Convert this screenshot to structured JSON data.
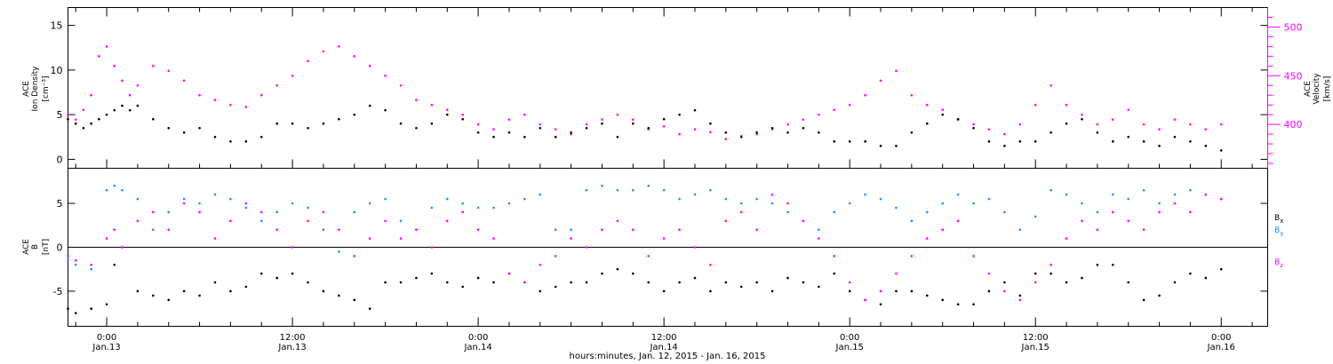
{
  "figure": {
    "xlabel": "hours:minutes, Jan. 12, 2015 - Jan. 16, 2015",
    "x_ticks": [
      {
        "time": "0:00",
        "date": "Jan.13"
      },
      {
        "time": "12:00",
        "date": "Jan.13"
      },
      {
        "time": "0:00",
        "date": "Jan.14"
      },
      {
        "time": "12:00",
        "date": "Jan.14"
      },
      {
        "time": "0:00",
        "date": "Jan.15"
      },
      {
        "time": "12:00",
        "date": "Jan.15"
      },
      {
        "time": "0:00",
        "date": "Jan.16"
      }
    ]
  },
  "colors": {
    "axis": "#000000",
    "black_series": "#000000",
    "magenta": "#ff00ff",
    "blue": "#1e90ff"
  },
  "chart_data": [
    {
      "type": "scatter",
      "panel": "top",
      "x_unit": "hours since 2015-01-12 00:00",
      "x_range": [
        "2015-01-12 21:30",
        "2015-01-16 03:00"
      ],
      "ylabel_left": [
        "ACE",
        "Ion Density",
        "[cm⁻³]"
      ],
      "ylabel_right": [
        "ACE",
        "Velocity",
        "[km/s]"
      ],
      "ylim_left": [
        -1,
        17
      ],
      "yticks_left": [
        0,
        5,
        10,
        15
      ],
      "ylim_right": [
        355,
        520
      ],
      "yticks_right": [
        400,
        450,
        500
      ],
      "series": [
        {
          "name": "Ion Density",
          "axis": "left",
          "color": "#000000",
          "x": [
            21.5,
            22,
            22.5,
            23,
            23.5,
            24,
            24.5,
            25,
            25.5,
            26,
            27,
            28,
            29,
            30,
            31,
            32,
            33,
            34,
            35,
            36,
            37,
            38,
            39,
            40,
            41,
            42,
            43,
            44,
            45,
            46,
            47,
            48,
            49,
            50,
            51,
            52,
            53,
            54,
            55,
            56,
            57,
            58,
            59,
            60,
            61,
            62,
            63,
            64,
            65,
            66,
            67,
            68,
            69,
            70,
            71,
            72,
            73,
            74,
            75,
            76,
            77,
            78,
            79,
            80,
            81,
            82,
            83,
            84,
            85,
            86,
            87,
            88,
            89,
            90,
            91,
            92,
            93,
            94,
            95,
            96
          ],
          "y": [
            4.5,
            4,
            3.5,
            4,
            4.5,
            5,
            5.5,
            6,
            5.5,
            6,
            4.5,
            3.5,
            3,
            3.5,
            2.5,
            2,
            2,
            2.5,
            4,
            4,
            3.5,
            4,
            4.5,
            5,
            6,
            5.5,
            4,
            3.5,
            4,
            5,
            4.5,
            3,
            2.5,
            3,
            2.5,
            3.5,
            2.5,
            3,
            3.5,
            4,
            2.5,
            4,
            3.5,
            4.5,
            5,
            5.5,
            4,
            3,
            2.5,
            3,
            3.5,
            3,
            3.5,
            3,
            2,
            2,
            2,
            1.5,
            1.5,
            3,
            4,
            5,
            4.5,
            3.5,
            2,
            1.5,
            2,
            2,
            3,
            4,
            4.5,
            3,
            2,
            2.5,
            2,
            1.5,
            2.5,
            2,
            1.5,
            1
          ]
        },
        {
          "name": "Velocity",
          "axis": "right",
          "color": "#ff00ff",
          "x": [
            21.5,
            22,
            22.5,
            23,
            23.5,
            24,
            24.5,
            25,
            25.5,
            26,
            27,
            28,
            29,
            30,
            31,
            32,
            33,
            34,
            35,
            36,
            37,
            38,
            39,
            40,
            41,
            42,
            43,
            44,
            45,
            46,
            47,
            48,
            49,
            50,
            51,
            52,
            53,
            54,
            55,
            56,
            57,
            58,
            59,
            60,
            61,
            62,
            63,
            64,
            65,
            66,
            67,
            68,
            69,
            70,
            71,
            72,
            73,
            74,
            75,
            76,
            77,
            78,
            79,
            80,
            81,
            82,
            83,
            84,
            85,
            86,
            87,
            88,
            89,
            90,
            91,
            92,
            93,
            94,
            95,
            96
          ],
          "y": [
            410,
            405,
            415,
            430,
            470,
            480,
            460,
            445,
            430,
            440,
            460,
            455,
            445,
            430,
            425,
            420,
            418,
            430,
            440,
            450,
            465,
            475,
            480,
            470,
            460,
            450,
            440,
            425,
            420,
            415,
            410,
            400,
            395,
            405,
            410,
            400,
            395,
            390,
            400,
            405,
            410,
            405,
            395,
            398,
            390,
            395,
            392,
            385,
            388,
            390,
            395,
            400,
            405,
            410,
            415,
            420,
            430,
            445,
            455,
            430,
            420,
            415,
            405,
            400,
            395,
            390,
            400,
            420,
            440,
            420,
            410,
            400,
            405,
            415,
            400,
            395,
            405,
            400,
            395,
            400
          ]
        }
      ]
    },
    {
      "type": "scatter",
      "panel": "bottom",
      "x_unit": "hours since 2015-01-12 00:00",
      "x_range": [
        "2015-01-12 21:30",
        "2015-01-16 03:00"
      ],
      "ylabel_left": [
        "ACE",
        "B",
        "[nT]"
      ],
      "ylim": [
        -9,
        9
      ],
      "yticks": [
        -5,
        0,
        5
      ],
      "zero_line": true,
      "legend_placement": "right",
      "series": [
        {
          "name": "Bx",
          "color": "#000000",
          "x": [
            21.5,
            22,
            23,
            24,
            24.5,
            25,
            26,
            27,
            28,
            29,
            30,
            31,
            32,
            33,
            34,
            35,
            36,
            37,
            38,
            39,
            40,
            41,
            42,
            43,
            44,
            45,
            46,
            47,
            48,
            49,
            50,
            51,
            52,
            53,
            54,
            55,
            56,
            57,
            58,
            59,
            60,
            61,
            62,
            63,
            64,
            65,
            66,
            67,
            68,
            69,
            70,
            71,
            72,
            73,
            74,
            75,
            76,
            77,
            78,
            79,
            80,
            81,
            82,
            83,
            84,
            85,
            86,
            87,
            88,
            89,
            90,
            91,
            92,
            93,
            94,
            95,
            96
          ],
          "y": [
            -7,
            -7.5,
            -7,
            -6.5,
            -2,
            0,
            -5,
            -5.5,
            -6,
            -5,
            -5.5,
            -4,
            -5,
            -4.5,
            -3,
            -3.5,
            -3,
            -4,
            -5,
            -5.5,
            -6,
            -7,
            -4,
            -4,
            -3.5,
            -3,
            -4,
            -4.5,
            -3.5,
            -4,
            -3,
            -4,
            -5,
            -4.5,
            -4,
            -4,
            -3,
            -2.5,
            -3,
            -4,
            -5,
            -4,
            -3.5,
            -5,
            -4,
            -4.5,
            -4,
            -5,
            -3.5,
            -4,
            -4.5,
            -3,
            -5,
            -6,
            -6.5,
            -5,
            -5,
            -5.5,
            -6,
            -6.5,
            -6.5,
            -5,
            -4,
            -5.5,
            -3,
            -3,
            -4,
            -3.5,
            -2,
            -2,
            -4,
            -6,
            -5.5,
            -4,
            -3,
            -3.5,
            -2.5
          ]
        },
        {
          "name": "By",
          "color": "#1e90ff",
          "x": [
            21.5,
            22,
            23,
            24,
            24.5,
            25,
            26,
            27,
            28,
            29,
            30,
            31,
            32,
            33,
            34,
            35,
            36,
            37,
            38,
            39,
            40,
            41,
            42,
            43,
            44,
            45,
            46,
            47,
            48,
            49,
            50,
            51,
            52,
            53,
            54,
            55,
            56,
            57,
            58,
            59,
            60,
            61,
            62,
            63,
            64,
            65,
            66,
            67,
            68,
            69,
            70,
            71,
            72,
            73,
            74,
            75,
            76,
            77,
            78,
            79,
            80,
            81,
            82,
            83,
            84,
            85,
            86,
            87,
            88,
            89,
            90,
            91,
            92,
            93,
            94,
            95,
            96
          ],
          "y": [
            -1.5,
            -2,
            -2.5,
            6.5,
            7,
            6.5,
            5.5,
            2,
            4,
            5.5,
            5,
            6,
            5.5,
            4.5,
            3,
            4,
            5,
            4.5,
            2,
            -0.5,
            4,
            5,
            5.5,
            3,
            2,
            4.5,
            5.5,
            5,
            4.5,
            4.5,
            5,
            5.5,
            6,
            2,
            2,
            6.5,
            7,
            6.5,
            6.5,
            7,
            6.5,
            5.5,
            6,
            6.5,
            5.5,
            5,
            5.5,
            5,
            4,
            3,
            2,
            4,
            5,
            6,
            5.5,
            4.5,
            3,
            4,
            5,
            6,
            5,
            5.5,
            4,
            2,
            3.5,
            6.5,
            6,
            5,
            4,
            6,
            5.5,
            6.5,
            5,
            6,
            6.5,
            6,
            5.5
          ]
        },
        {
          "name": "Bz",
          "color": "#ff00ff",
          "x": [
            21.5,
            22,
            23,
            24,
            24.5,
            25,
            26,
            27,
            28,
            29,
            30,
            31,
            32,
            33,
            34,
            35,
            36,
            37,
            38,
            39,
            40,
            41,
            42,
            43,
            44,
            45,
            46,
            47,
            48,
            49,
            50,
            51,
            52,
            53,
            54,
            55,
            56,
            57,
            58,
            59,
            60,
            61,
            62,
            63,
            64,
            65,
            66,
            67,
            68,
            69,
            70,
            71,
            72,
            73,
            74,
            75,
            76,
            77,
            78,
            79,
            80,
            81,
            82,
            83,
            84,
            85,
            86,
            87,
            88,
            89,
            90,
            91,
            92,
            93,
            94,
            95,
            96
          ],
          "y": [
            -1,
            -1.5,
            -2,
            1,
            2,
            0,
            3,
            4,
            2,
            5,
            4,
            1,
            3,
            5,
            4,
            2,
            0,
            3,
            4,
            2,
            -1,
            1,
            3,
            1,
            2,
            0,
            3,
            4,
            2,
            1,
            -3,
            -4,
            -2,
            -1,
            1,
            0,
            2,
            3,
            2,
            -1,
            1,
            2,
            0,
            -2,
            3,
            4,
            2,
            6,
            5,
            3,
            1,
            -1,
            -4,
            -6,
            -5,
            -3,
            -1,
            1,
            2,
            3,
            -1,
            -3,
            -5,
            -6,
            -4,
            -2,
            1,
            3,
            2,
            4,
            3,
            2,
            4,
            5,
            4,
            6,
            5.5
          ]
        }
      ]
    }
  ]
}
